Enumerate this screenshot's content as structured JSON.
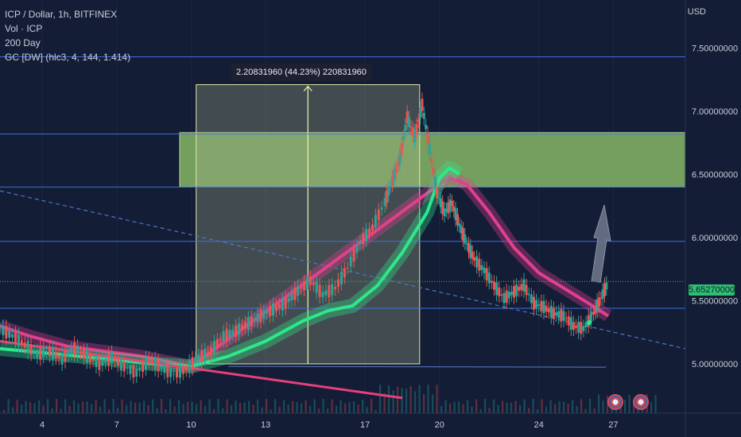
{
  "legend": {
    "line1": "ICP / Dollar, 1h, BITFINEX",
    "line2": "Vol · ICP",
    "line3": "200 Day",
    "line4": "GC [DW] (hlc3, 4, 144, 1.414)"
  },
  "axis_currency": "USD",
  "current_price_label": "5.65270000",
  "measure_label": "2.20831960 (44.23%) 220831960",
  "colors": {
    "background": "#131d36",
    "horizontal_line": "#3f6fe0",
    "green_zone": "#8fc46a",
    "measure_box": "#a8b08a",
    "up_candle": "#26a69a",
    "down_candle": "#ef5350",
    "band_green": "#2ee88a",
    "band_pink": "#e0408c",
    "trend_line": "#e8407a",
    "dashed_line": "#4a78c8",
    "current_price": "#2fbf71",
    "arrow": "#6b7487"
  },
  "chart_data": {
    "type": "line",
    "title": "",
    "xlabel": "",
    "ylabel": "USD",
    "ylim": [
      4.61,
      7.88
    ],
    "x_ticks": [
      {
        "label": "4",
        "x": 3.5
      },
      {
        "label": "7",
        "x": 6.5
      },
      {
        "label": "10",
        "x": 9.5
      },
      {
        "label": "13",
        "x": 12.5
      },
      {
        "label": "17",
        "x": 16.5
      },
      {
        "label": "20",
        "x": 19.5
      },
      {
        "label": "24",
        "x": 23.5
      },
      {
        "label": "27",
        "x": 26.5
      }
    ],
    "xlim": [
      1.8,
      29.4
    ],
    "y_ticks": [
      {
        "label": "7.50000000",
        "value": 7.5
      },
      {
        "label": "7.00000000",
        "value": 7.0
      },
      {
        "label": "6.50000000",
        "value": 6.5
      },
      {
        "label": "6.00000000",
        "value": 6.0
      },
      {
        "label": "5.50000000",
        "value": 5.5
      },
      {
        "label": "5.00000000",
        "value": 5.0
      }
    ],
    "horizontal_lines": [
      7.43,
      6.82,
      6.4,
      5.97,
      5.44
    ],
    "green_zone": [
      6.4,
      6.83
    ],
    "measure": {
      "x0": 9.7,
      "x1": 18.7,
      "y_low": 5.0,
      "y_high": 7.21
    },
    "current_price": 5.6527,
    "price_series": [
      [
        1.8,
        5.28
      ],
      [
        2.3,
        5.22
      ],
      [
        2.8,
        5.15
      ],
      [
        3.3,
        5.08
      ],
      [
        3.8,
        5.1
      ],
      [
        4.3,
        5.04
      ],
      [
        4.8,
        5.12
      ],
      [
        5.3,
        5.06
      ],
      [
        5.8,
        5.0
      ],
      [
        6.3,
        5.05
      ],
      [
        6.8,
        4.98
      ],
      [
        7.3,
        4.93
      ],
      [
        7.8,
        5.03
      ],
      [
        8.3,
        4.97
      ],
      [
        8.8,
        4.92
      ],
      [
        9.3,
        4.96
      ],
      [
        9.8,
        5.05
      ],
      [
        10.3,
        5.1
      ],
      [
        10.8,
        5.22
      ],
      [
        11.3,
        5.26
      ],
      [
        11.8,
        5.32
      ],
      [
        12.3,
        5.38
      ],
      [
        12.8,
        5.43
      ],
      [
        13.3,
        5.48
      ],
      [
        13.8,
        5.58
      ],
      [
        14.3,
        5.66
      ],
      [
        14.8,
        5.55
      ],
      [
        15.3,
        5.6
      ],
      [
        15.8,
        5.76
      ],
      [
        16.3,
        5.96
      ],
      [
        16.8,
        6.08
      ],
      [
        17.3,
        6.28
      ],
      [
        17.6,
        6.45
      ],
      [
        17.9,
        6.62
      ],
      [
        18.2,
        6.95
      ],
      [
        18.5,
        6.8
      ],
      [
        18.8,
        7.05
      ],
      [
        19.1,
        6.7
      ],
      [
        19.4,
        6.35
      ],
      [
        19.7,
        6.2
      ],
      [
        20.0,
        6.27
      ],
      [
        20.3,
        6.1
      ],
      [
        20.6,
        5.95
      ],
      [
        20.9,
        5.83
      ],
      [
        21.3,
        5.74
      ],
      [
        21.7,
        5.62
      ],
      [
        22.1,
        5.52
      ],
      [
        22.5,
        5.57
      ],
      [
        22.9,
        5.62
      ],
      [
        23.3,
        5.48
      ],
      [
        23.7,
        5.45
      ],
      [
        24.1,
        5.4
      ],
      [
        24.5,
        5.38
      ],
      [
        24.9,
        5.3
      ],
      [
        25.3,
        5.28
      ],
      [
        25.7,
        5.4
      ],
      [
        26.0,
        5.52
      ],
      [
        26.3,
        5.65
      ]
    ],
    "green_band": [
      [
        1.8,
        5.12
      ],
      [
        4.0,
        5.08
      ],
      [
        6.0,
        5.04
      ],
      [
        8.0,
        5.0
      ],
      [
        9.5,
        4.98
      ],
      [
        11.0,
        5.06
      ],
      [
        12.5,
        5.18
      ],
      [
        14.0,
        5.34
      ],
      [
        15.0,
        5.42
      ],
      [
        16.0,
        5.46
      ],
      [
        17.0,
        5.62
      ],
      [
        18.0,
        5.88
      ],
      [
        19.0,
        6.2
      ],
      [
        19.5,
        6.47
      ],
      [
        19.9,
        6.55
      ],
      [
        20.3,
        6.5
      ]
    ],
    "pink_band": [
      [
        1.8,
        5.3
      ],
      [
        3.0,
        5.22
      ],
      [
        4.5,
        5.14
      ],
      [
        6.0,
        5.1
      ],
      [
        7.5,
        5.06
      ],
      [
        9.0,
        5.0
      ],
      [
        9.5,
        4.98
      ],
      [
        19.9,
        6.48
      ],
      [
        20.6,
        6.42
      ],
      [
        21.5,
        6.2
      ],
      [
        22.5,
        5.92
      ],
      [
        23.5,
        5.72
      ],
      [
        24.5,
        5.6
      ],
      [
        25.5,
        5.48
      ],
      [
        26.3,
        5.38
      ]
    ],
    "trend_line": [
      [
        1.8,
        5.18
      ],
      [
        18.0,
        4.73
      ]
    ],
    "dashed_line": [
      [
        1.8,
        6.37
      ],
      [
        29.4,
        5.12
      ]
    ],
    "volume_baseline": 4.98
  }
}
